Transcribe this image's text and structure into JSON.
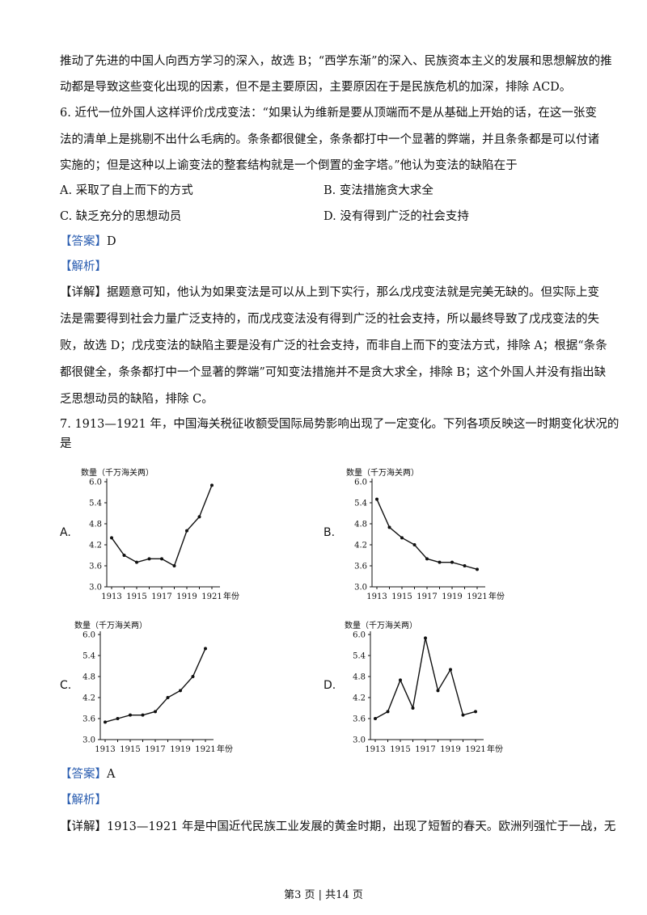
{
  "lines": [
    "推动了先进的中国人向西方学习的深入，故选 B；“西学东渐”的深入、民族资本主义的发展和思想解放的推",
    "动都是导致这些变化出现的因素，但不是主要原因，主要原因在于是民族危机的加深，排除 ACD。",
    "6. 近代一位外国人这样评价戊戌变法：“如果认为维新是要从顶端而不是从基础上开始的话，在这一张变",
    "法的清单上是挑剔不出什么毛病的。条条都很健全，条条都打中一个显著的弊端，并且条条都是可以付诸",
    "实施的；但是这种以上谕变法的整套结构就是一个倒置的金字塔。”他认为变法的缺陷在于"
  ],
  "q6_options": {
    "A": "A.  采取了自上而下的方式",
    "B": "B.  变法措施贪大求全",
    "C": "C.  缺乏充分的思想动员",
    "D": "D.  没有得到广泛的社会支持"
  },
  "q6_answer_tag": "【答案】",
  "q6_answer": "D",
  "q6_analysis_tag": "【解析】",
  "q6_detail_tag": "【详解】",
  "q6_detail_lines": [
    "据题意可知，他认为如果变法是可以从上到下实行，那么戊戌变法就是完美无缺的。但实际上变",
    "法是需要得到社会力量广泛支持的，而戊戌变法没有得到广泛的社会支持，所以最终导致了戊戌变法的失",
    "败，故选 D；戊戌变法的缺陷主要是没有广泛的社会支持，而非自上而下的变法方式，排除 A；根据“条条",
    "都很健全，条条都打中一个显著的弊端”可知变法措施并不是贪大求全，排除 B；这个外国人并没有指出缺",
    "乏思想动员的缺陷，排除 C。"
  ],
  "q7_lines": [
    "7. 1913—1921 年，中国海关税征收额受国际局势影响出现了一定变化。下列各项反映这一时期变化状况的",
    "是"
  ],
  "chart_data": [
    {
      "option": "A.",
      "type": "line",
      "ylabel": "数量（千万海关两）",
      "xlabel": "年份",
      "x": [
        1913,
        1914,
        1915,
        1916,
        1917,
        1918,
        1919,
        1920,
        1921
      ],
      "y": [
        4.4,
        3.9,
        3.7,
        3.8,
        3.8,
        3.6,
        4.6,
        5.0,
        5.9
      ],
      "ylim": [
        3.0,
        6.0
      ],
      "yticks": [
        "3.0",
        "3.6",
        "4.2",
        "4.8",
        "5.4",
        "6.0"
      ],
      "xticks": [
        "1913",
        "1915",
        "1917",
        "1919",
        "1921"
      ]
    },
    {
      "option": "B.",
      "type": "line",
      "ylabel": "数量（千万海关两）",
      "xlabel": "年份",
      "x": [
        1913,
        1914,
        1915,
        1916,
        1917,
        1918,
        1919,
        1920,
        1921
      ],
      "y": [
        5.5,
        4.7,
        4.4,
        4.2,
        3.8,
        3.7,
        3.7,
        3.6,
        3.5
      ],
      "ylim": [
        3.0,
        6.0
      ],
      "yticks": [
        "3.0",
        "3.6",
        "4.2",
        "4.8",
        "5.4",
        "6.0"
      ],
      "xticks": [
        "1913",
        "1915",
        "1917",
        "1919",
        "1921"
      ]
    },
    {
      "option": "C.",
      "type": "line",
      "ylabel": "数量（千万海关两）",
      "xlabel": "年份",
      "x": [
        1913,
        1914,
        1915,
        1916,
        1917,
        1918,
        1919,
        1920,
        1921
      ],
      "y": [
        3.5,
        3.6,
        3.7,
        3.7,
        3.8,
        4.2,
        4.4,
        4.8,
        5.6
      ],
      "ylim": [
        3.0,
        6.0
      ],
      "yticks": [
        "3.0",
        "3.6",
        "4.2",
        "4.8",
        "5.4",
        "6.0"
      ],
      "xticks": [
        "1913",
        "1915",
        "1917",
        "1919",
        "1921"
      ]
    },
    {
      "option": "D.",
      "type": "line",
      "ylabel": "数量（千万海关两）",
      "xlabel": "年份",
      "x": [
        1913,
        1914,
        1915,
        1916,
        1917,
        1918,
        1919,
        1920,
        1921
      ],
      "y": [
        3.6,
        3.8,
        4.7,
        3.9,
        5.9,
        4.4,
        5.0,
        3.7,
        3.8
      ],
      "ylim": [
        3.0,
        6.0
      ],
      "yticks": [
        "3.0",
        "3.6",
        "4.2",
        "4.8",
        "5.4",
        "6.0"
      ],
      "xticks": [
        "1913",
        "1915",
        "1917",
        "1919",
        "1921"
      ]
    }
  ],
  "q7_answer_tag": "【答案】",
  "q7_answer": "A",
  "q7_analysis_tag": "【解析】",
  "q7_detail_tag": "【详解】",
  "q7_detail": "1913—1921 年是中国近代民族工业发展的黄金时期，出现了短暂的春天。欧洲列强忙于一战，无",
  "footer": "第3 页  |  共14 页"
}
